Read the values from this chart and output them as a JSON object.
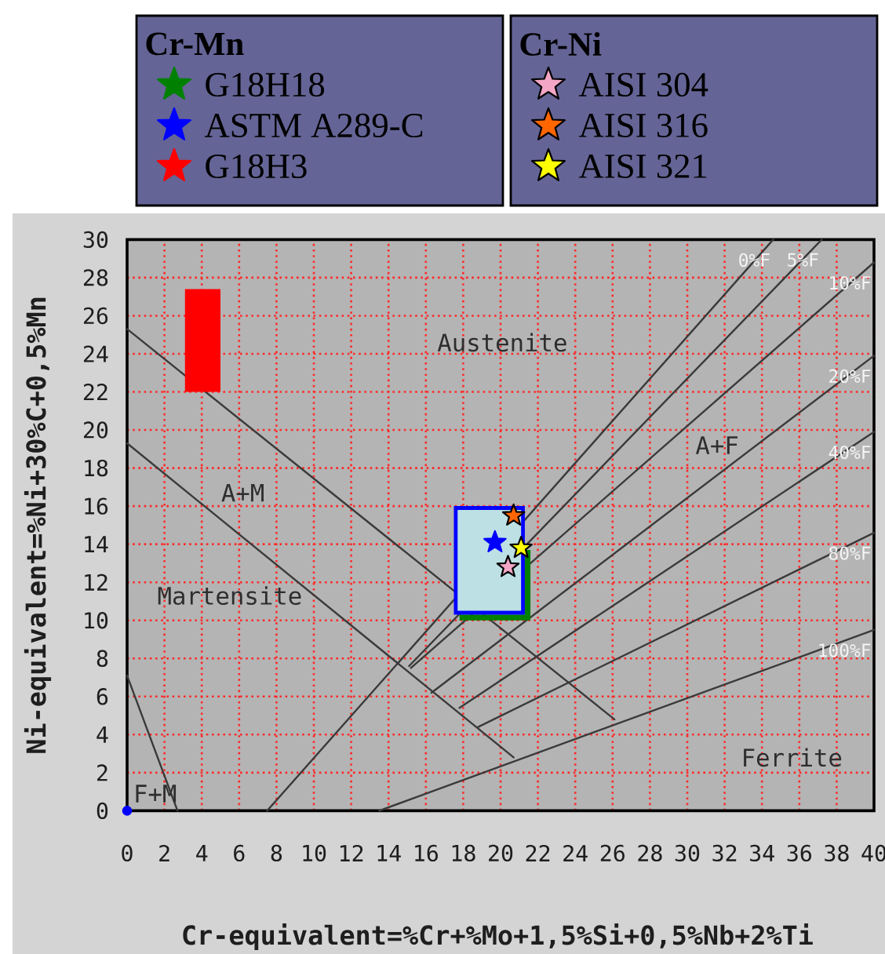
{
  "chart_data": {
    "type": "line",
    "xlabel": "Cr-equivalent=%Cr+%Mo+1,5%Si+0,5%Nb+2%Ti",
    "ylabel": "Ni-equivalent=%Ni+30%C+0,5%Mn",
    "xlim": [
      0,
      40
    ],
    "ylim": [
      0,
      30
    ],
    "xticks": [
      0,
      2,
      4,
      6,
      8,
      10,
      12,
      14,
      16,
      18,
      20,
      22,
      24,
      26,
      28,
      30,
      32,
      34,
      36,
      38,
      40
    ],
    "yticks": [
      0,
      2,
      4,
      6,
      8,
      10,
      12,
      14,
      16,
      18,
      20,
      22,
      24,
      26,
      28,
      30
    ],
    "grid": true,
    "legend": "top",
    "annotations": [
      "Cr-Mn",
      "Cr-Ni",
      "Austenite",
      "A+M",
      "Martensite",
      "A+F",
      "Ferrite",
      "F+M"
    ],
    "series": [
      {
        "color": "#3a3a3a",
        "x": [
          0,
          26.1
        ],
        "values": [
          25.3,
          4.8
        ]
      },
      {
        "color": "#3a3a3a",
        "x": [
          0,
          20.7
        ],
        "values": [
          19.3,
          2.8
        ]
      },
      {
        "color": "#3a3a3a",
        "x": [
          0,
          2.7
        ],
        "values": [
          7.1,
          0
        ]
      },
      {
        "name": "0%F",
        "color": "#3a3a3a",
        "x": [
          7.5,
          34.6
        ],
        "values": [
          0,
          30
        ]
      },
      {
        "name": "5%F",
        "color": "#3a3a3a",
        "x": [
          15.1,
          37.2
        ],
        "values": [
          7.6,
          30
        ]
      },
      {
        "name": "10%F",
        "color": "#3a3a3a",
        "x": [
          15.2,
          40
        ],
        "values": [
          7.5,
          28.8
        ]
      },
      {
        "name": "20%F",
        "color": "#3a3a3a",
        "x": [
          16.3,
          40
        ],
        "values": [
          6.2,
          23.9
        ]
      },
      {
        "name": "40%F",
        "color": "#3a3a3a",
        "x": [
          17.8,
          40
        ],
        "values": [
          5.4,
          19.9
        ]
      },
      {
        "name": "80%F",
        "color": "#3a3a3a",
        "x": [
          18.8,
          40
        ],
        "values": [
          4.4,
          14.6
        ]
      },
      {
        "name": "100%F",
        "color": "#3a3a3a",
        "x": [
          13.5,
          40
        ],
        "values": [
          0,
          9.5
        ]
      },
      {
        "type": "area",
        "name": "G18H18",
        "color": "#008000",
        "x": [
          17.8,
          21.6,
          21.6,
          21.3,
          21.3,
          17.8,
          17.8
        ],
        "values": [
          10.0,
          10.0,
          13.7,
          13.7,
          10.3,
          10.3,
          10.0
        ]
      },
      {
        "type": "area",
        "color": "#0000ff",
        "x": [
          17.5,
          21.3,
          21.3,
          17.5,
          17.5
        ],
        "values": [
          10.3,
          10.3,
          16.0,
          16.0,
          10.3
        ]
      },
      {
        "type": "area",
        "color": "#bde0e4",
        "x": [
          17.7,
          21.1,
          21.1,
          17.7,
          17.7
        ],
        "values": [
          10.5,
          10.5,
          15.8,
          15.8,
          10.5
        ]
      },
      {
        "type": "scatter",
        "marker": "star",
        "name": "ASTM A289-C",
        "color": "#0000ff",
        "x": [
          19.7
        ],
        "values": [
          14.1
        ]
      },
      {
        "type": "area",
        "name": "G18H3",
        "color": "#ff0000",
        "x": [
          3.1,
          5,
          5,
          3.1,
          3.1
        ],
        "values": [
          22,
          22,
          27.4,
          27.4,
          22
        ]
      },
      {
        "type": "scatter",
        "marker": "circle",
        "color": "#0000ff",
        "x": [
          0
        ],
        "values": [
          0
        ]
      },
      {
        "type": "scatter",
        "marker": "star",
        "name": "AISI 304",
        "color": "#f4a6c6",
        "x": [
          20.4
        ],
        "values": [
          12.8
        ]
      },
      {
        "type": "scatter",
        "marker": "star",
        "name": "AISI 316",
        "color": "#ff6600",
        "x": [
          20.7
        ],
        "values": [
          15.5
        ]
      },
      {
        "type": "scatter",
        "marker": "star",
        "name": "AISI 321",
        "color": "#ffff00",
        "x": [
          21.1
        ],
        "values": [
          13.8
        ]
      }
    ]
  }
}
